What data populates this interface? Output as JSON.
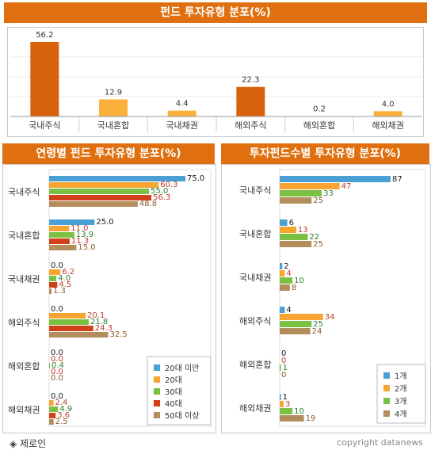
{
  "top": {
    "title": "펀드 투자유형 분포(%)"
  },
  "left": {
    "title": "연령별 펀드 투자유형 분포(%)"
  },
  "right": {
    "title": "투자펀드수별 투자유형 분포(%)"
  },
  "footer": {
    "left": "◈ 제로인",
    "right": "copyright datanews"
  },
  "colors": {
    "header": "#e0700f",
    "dark_orange": "#d9620f",
    "light_orange": "#fbb03b",
    "blue": "#4a9fd4",
    "orange": "#f7a431",
    "green": "#7ac143",
    "red": "#d2401a",
    "tan": "#b38d5b"
  },
  "chart_data": [
    {
      "type": "bar",
      "title": "펀드 투자유형 분포(%)",
      "categories": [
        "국내주식",
        "국내혼합",
        "국내채권",
        "해외주식",
        "해외혼합",
        "해외채권"
      ],
      "values": [
        56.2,
        12.9,
        4.4,
        22.3,
        0.2,
        4.0
      ],
      "value_labels": [
        "56.2",
        "12.9",
        "4.4",
        "22.3",
        "0.2",
        "4.0"
      ],
      "bar_colors": [
        "#d9620f",
        "#fbb03b",
        "#fbb03b",
        "#d9620f",
        "#fbb03b",
        "#fbb03b"
      ],
      "ylim": [
        0,
        60
      ]
    },
    {
      "type": "bar",
      "orientation": "horizontal",
      "title": "연령별 펀드 투자유형 분포(%)",
      "categories": [
        "국내주식",
        "국내혼합",
        "국내채권",
        "해외주식",
        "해외혼합",
        "해외채권"
      ],
      "series": [
        {
          "name": "20대 미만",
          "color": "#4a9fd4",
          "values": [
            75.0,
            25.0,
            0.0,
            0.0,
            0.0,
            0.0
          ],
          "labels": [
            "75.0",
            "25.0",
            "0.0",
            "0.0",
            "0.0",
            "0.0"
          ]
        },
        {
          "name": "20대",
          "color": "#f7a431",
          "values": [
            60.3,
            11.0,
            6.2,
            20.1,
            0.0,
            2.4
          ],
          "labels": [
            "60.3",
            "11.0",
            "6.2",
            "20.1",
            "0.0",
            "2.4"
          ]
        },
        {
          "name": "30대",
          "color": "#7ac143",
          "values": [
            55.0,
            13.9,
            4.0,
            21.8,
            0.4,
            4.9
          ],
          "labels": [
            "55.0",
            "13.9",
            "4.0",
            "21.8",
            "0.4",
            "4.9"
          ]
        },
        {
          "name": "40대",
          "color": "#d2401a",
          "values": [
            56.3,
            11.3,
            4.5,
            24.3,
            0.0,
            3.6
          ],
          "labels": [
            "56.3",
            "11.3",
            "4.5",
            "24.3",
            "0.0",
            "3.6"
          ]
        },
        {
          "name": "50대 이상",
          "color": "#b38d5b",
          "values": [
            48.8,
            15.0,
            1.3,
            32.5,
            0.0,
            2.5
          ],
          "labels": [
            "48.8",
            "15.0",
            "1.3",
            "32.5",
            "0.0",
            "2.5"
          ]
        }
      ],
      "xlim": [
        0,
        100
      ],
      "legend": "bottom-right"
    },
    {
      "type": "bar",
      "orientation": "horizontal",
      "title": "투자펀드수별 투자유형 분포(%)",
      "categories": [
        "국내주식",
        "국내혼합",
        "국내채권",
        "해외주식",
        "해외혼합",
        "해외채권"
      ],
      "series": [
        {
          "name": "1개",
          "color": "#4a9fd4",
          "values": [
            87,
            6,
            2,
            4,
            0,
            1
          ],
          "labels": [
            "87",
            "6",
            "2",
            "4",
            "0",
            "1"
          ]
        },
        {
          "name": "2개",
          "color": "#f7a431",
          "values": [
            47,
            13,
            4,
            34,
            0,
            3
          ],
          "labels": [
            "47",
            "13",
            "4",
            "34",
            "0",
            "3"
          ]
        },
        {
          "name": "3개",
          "color": "#7ac143",
          "values": [
            33,
            22,
            10,
            25,
            1,
            10
          ],
          "labels": [
            "33",
            "22",
            "10",
            "25",
            "1",
            "10"
          ]
        },
        {
          "name": "4개",
          "color": "#b38d5b",
          "values": [
            25,
            25,
            8,
            24,
            0,
            19
          ],
          "labels": [
            "25",
            "25",
            "8",
            "24",
            "0",
            "19"
          ]
        }
      ],
      "xlim": [
        0,
        100
      ],
      "legend": "bottom-right"
    }
  ]
}
